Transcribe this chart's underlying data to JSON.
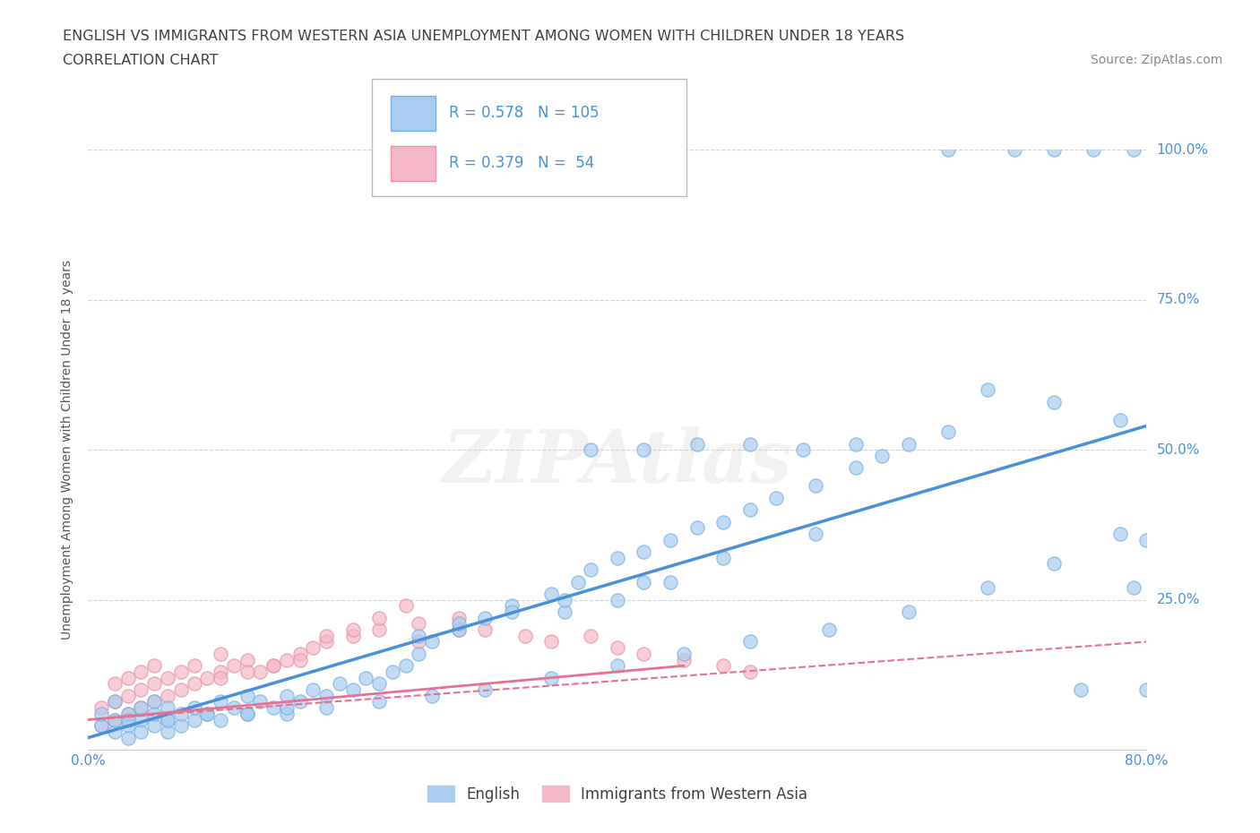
{
  "title_line1": "ENGLISH VS IMMIGRANTS FROM WESTERN ASIA UNEMPLOYMENT AMONG WOMEN WITH CHILDREN UNDER 18 YEARS",
  "title_line2": "CORRELATION CHART",
  "source": "Source: ZipAtlas.com",
  "ylabel": "Unemployment Among Women with Children Under 18 years",
  "xlim": [
    0.0,
    0.8
  ],
  "ylim": [
    0.0,
    1.0
  ],
  "xticks": [
    0.0,
    0.1,
    0.2,
    0.3,
    0.4,
    0.5,
    0.6,
    0.7,
    0.8
  ],
  "xticklabels": [
    "0.0%",
    "",
    "",
    "",
    "",
    "",
    "",
    "",
    "80.0%"
  ],
  "ytick_positions": [
    0.0,
    0.25,
    0.5,
    0.75,
    1.0
  ],
  "ytick_labels": [
    "",
    "25.0%",
    "50.0%",
    "75.0%",
    "100.0%"
  ],
  "english_color": "#a8cdf0",
  "immigrant_color": "#f5b8c8",
  "english_edge_color": "#7aaee0",
  "immigrant_edge_color": "#e890a8",
  "english_line_color": "#4a90d9",
  "immigrant_solid_line_color": "#e87090",
  "immigrant_dashed_line_color": "#e87090",
  "watermark": "ZIPAtlas",
  "background_color": "#ffffff",
  "grid_color": "#c8c8c8",
  "title_color": "#404040",
  "axis_label_color": "#555555",
  "tick_label_color": "#4a90d9",
  "english_scatter_x": [
    0.01,
    0.01,
    0.02,
    0.02,
    0.02,
    0.03,
    0.03,
    0.03,
    0.04,
    0.04,
    0.04,
    0.05,
    0.05,
    0.05,
    0.06,
    0.06,
    0.06,
    0.07,
    0.07,
    0.08,
    0.08,
    0.09,
    0.1,
    0.1,
    0.11,
    0.12,
    0.12,
    0.13,
    0.14,
    0.15,
    0.15,
    0.16,
    0.17,
    0.18,
    0.19,
    0.2,
    0.21,
    0.22,
    0.23,
    0.24,
    0.25,
    0.26,
    0.28,
    0.3,
    0.32,
    0.35,
    0.37,
    0.38,
    0.4,
    0.42,
    0.44,
    0.46,
    0.48,
    0.5,
    0.52,
    0.55,
    0.58,
    0.6,
    0.62,
    0.65,
    0.38,
    0.42,
    0.46,
    0.5,
    0.54,
    0.58,
    0.36,
    0.4,
    0.44,
    0.25,
    0.28,
    0.32,
    0.36,
    0.42,
    0.48,
    0.55,
    0.65,
    0.7,
    0.73,
    0.76,
    0.79,
    0.03,
    0.06,
    0.09,
    0.12,
    0.15,
    0.18,
    0.22,
    0.26,
    0.3,
    0.35,
    0.4,
    0.45,
    0.5,
    0.56,
    0.62,
    0.68,
    0.73,
    0.78,
    0.68,
    0.73,
    0.78,
    0.8,
    0.75,
    0.8,
    0.79
  ],
  "english_scatter_y": [
    0.04,
    0.06,
    0.03,
    0.05,
    0.08,
    0.04,
    0.06,
    0.02,
    0.05,
    0.07,
    0.03,
    0.04,
    0.06,
    0.08,
    0.05,
    0.03,
    0.07,
    0.04,
    0.06,
    0.05,
    0.07,
    0.06,
    0.05,
    0.08,
    0.07,
    0.06,
    0.09,
    0.08,
    0.07,
    0.09,
    0.06,
    0.08,
    0.1,
    0.09,
    0.11,
    0.1,
    0.12,
    0.11,
    0.13,
    0.14,
    0.16,
    0.18,
    0.2,
    0.22,
    0.24,
    0.26,
    0.28,
    0.3,
    0.32,
    0.33,
    0.35,
    0.37,
    0.38,
    0.4,
    0.42,
    0.44,
    0.47,
    0.49,
    0.51,
    0.53,
    0.5,
    0.5,
    0.51,
    0.51,
    0.5,
    0.51,
    0.23,
    0.25,
    0.28,
    0.19,
    0.21,
    0.23,
    0.25,
    0.28,
    0.32,
    0.36,
    1.0,
    1.0,
    1.0,
    1.0,
    1.0,
    0.05,
    0.05,
    0.06,
    0.06,
    0.07,
    0.07,
    0.08,
    0.09,
    0.1,
    0.12,
    0.14,
    0.16,
    0.18,
    0.2,
    0.23,
    0.27,
    0.31,
    0.36,
    0.6,
    0.58,
    0.55,
    0.35,
    0.1,
    0.1,
    0.27
  ],
  "immigrant_scatter_x": [
    0.01,
    0.01,
    0.02,
    0.02,
    0.02,
    0.03,
    0.03,
    0.03,
    0.04,
    0.04,
    0.04,
    0.05,
    0.05,
    0.05,
    0.06,
    0.06,
    0.07,
    0.07,
    0.08,
    0.08,
    0.09,
    0.1,
    0.1,
    0.11,
    0.12,
    0.13,
    0.14,
    0.15,
    0.16,
    0.17,
    0.18,
    0.2,
    0.22,
    0.25,
    0.28,
    0.3,
    0.33,
    0.35,
    0.38,
    0.4,
    0.42,
    0.45,
    0.48,
    0.5,
    0.18,
    0.2,
    0.22,
    0.24,
    0.25,
    0.28,
    0.1,
    0.12,
    0.14,
    0.16
  ],
  "immigrant_scatter_y": [
    0.04,
    0.07,
    0.05,
    0.08,
    0.11,
    0.06,
    0.09,
    0.12,
    0.07,
    0.1,
    0.13,
    0.08,
    0.11,
    0.14,
    0.09,
    0.12,
    0.1,
    0.13,
    0.11,
    0.14,
    0.12,
    0.13,
    0.16,
    0.14,
    0.15,
    0.13,
    0.14,
    0.15,
    0.16,
    0.17,
    0.18,
    0.19,
    0.2,
    0.21,
    0.22,
    0.2,
    0.19,
    0.18,
    0.19,
    0.17,
    0.16,
    0.15,
    0.14,
    0.13,
    0.19,
    0.2,
    0.22,
    0.24,
    0.18,
    0.2,
    0.12,
    0.13,
    0.14,
    0.15
  ],
  "eng_line_x": [
    0.0,
    0.8
  ],
  "eng_line_y": [
    0.02,
    0.54
  ],
  "imm_solid_line_x": [
    0.0,
    0.45
  ],
  "imm_solid_line_y": [
    0.05,
    0.14
  ],
  "imm_dashed_line_x": [
    0.0,
    0.8
  ],
  "imm_dashed_line_y": [
    0.05,
    0.18
  ]
}
